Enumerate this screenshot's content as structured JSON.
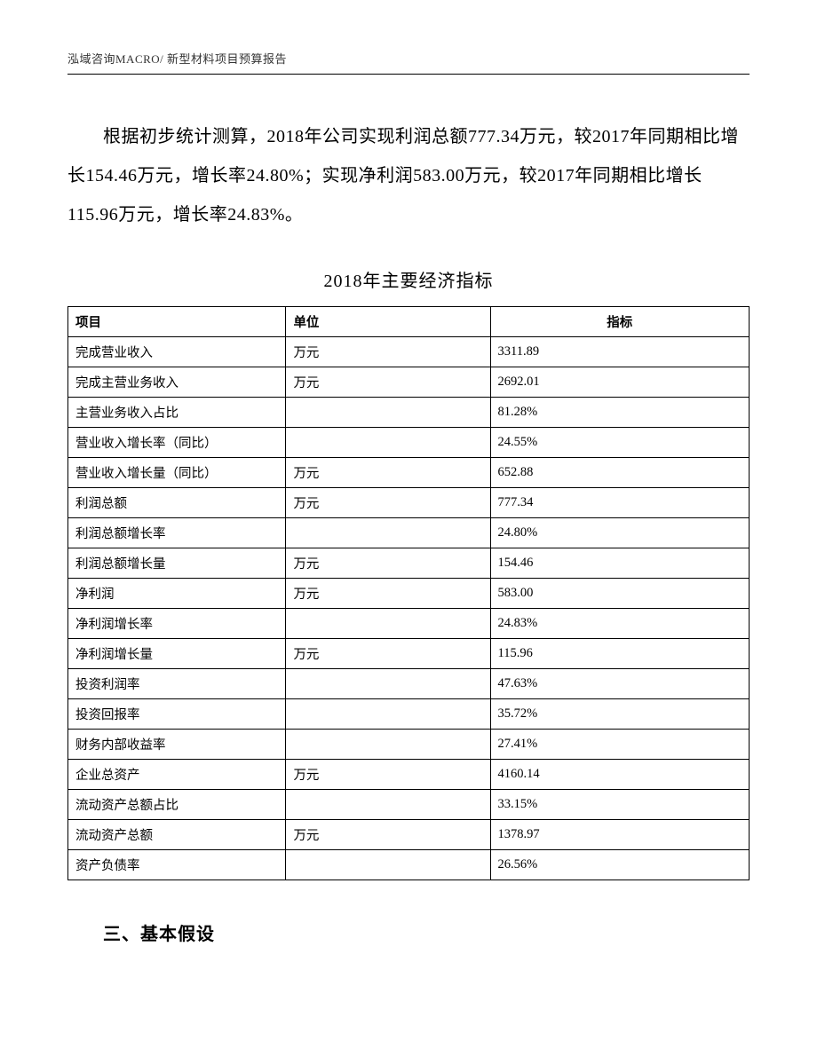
{
  "header": {
    "text": "泓域咨询MACRO/    新型材料项目预算报告"
  },
  "paragraph": {
    "text": "根据初步统计测算，2018年公司实现利润总额777.34万元，较2017年同期相比增长154.46万元，增长率24.80%；实现净利润583.00万元，较2017年同期相比增长115.96万元，增长率24.83%。"
  },
  "table": {
    "title": "2018年主要经济指标",
    "columns": [
      "项目",
      "单位",
      "指标"
    ],
    "rows": [
      [
        "完成营业收入",
        "万元",
        "3311.89"
      ],
      [
        "完成主营业务收入",
        "万元",
        "2692.01"
      ],
      [
        "主营业务收入占比",
        "",
        "81.28%"
      ],
      [
        "营业收入增长率（同比）",
        "",
        "24.55%"
      ],
      [
        "营业收入增长量（同比）",
        "万元",
        "652.88"
      ],
      [
        "利润总额",
        "万元",
        "777.34"
      ],
      [
        "利润总额增长率",
        "",
        "24.80%"
      ],
      [
        "利润总额增长量",
        "万元",
        "154.46"
      ],
      [
        "净利润",
        "万元",
        "583.00"
      ],
      [
        "净利润增长率",
        "",
        "24.83%"
      ],
      [
        "净利润增长量",
        "万元",
        "115.96"
      ],
      [
        "投资利润率",
        "",
        "47.63%"
      ],
      [
        "投资回报率",
        "",
        "35.72%"
      ],
      [
        "财务内部收益率",
        "",
        "27.41%"
      ],
      [
        "企业总资产",
        "万元",
        "4160.14"
      ],
      [
        "流动资产总额占比",
        "",
        "33.15%"
      ],
      [
        "流动资产总额",
        "万元",
        "1378.97"
      ],
      [
        "资产负债率",
        "",
        "26.56%"
      ]
    ]
  },
  "section_heading": {
    "text": "三、基本假设"
  }
}
